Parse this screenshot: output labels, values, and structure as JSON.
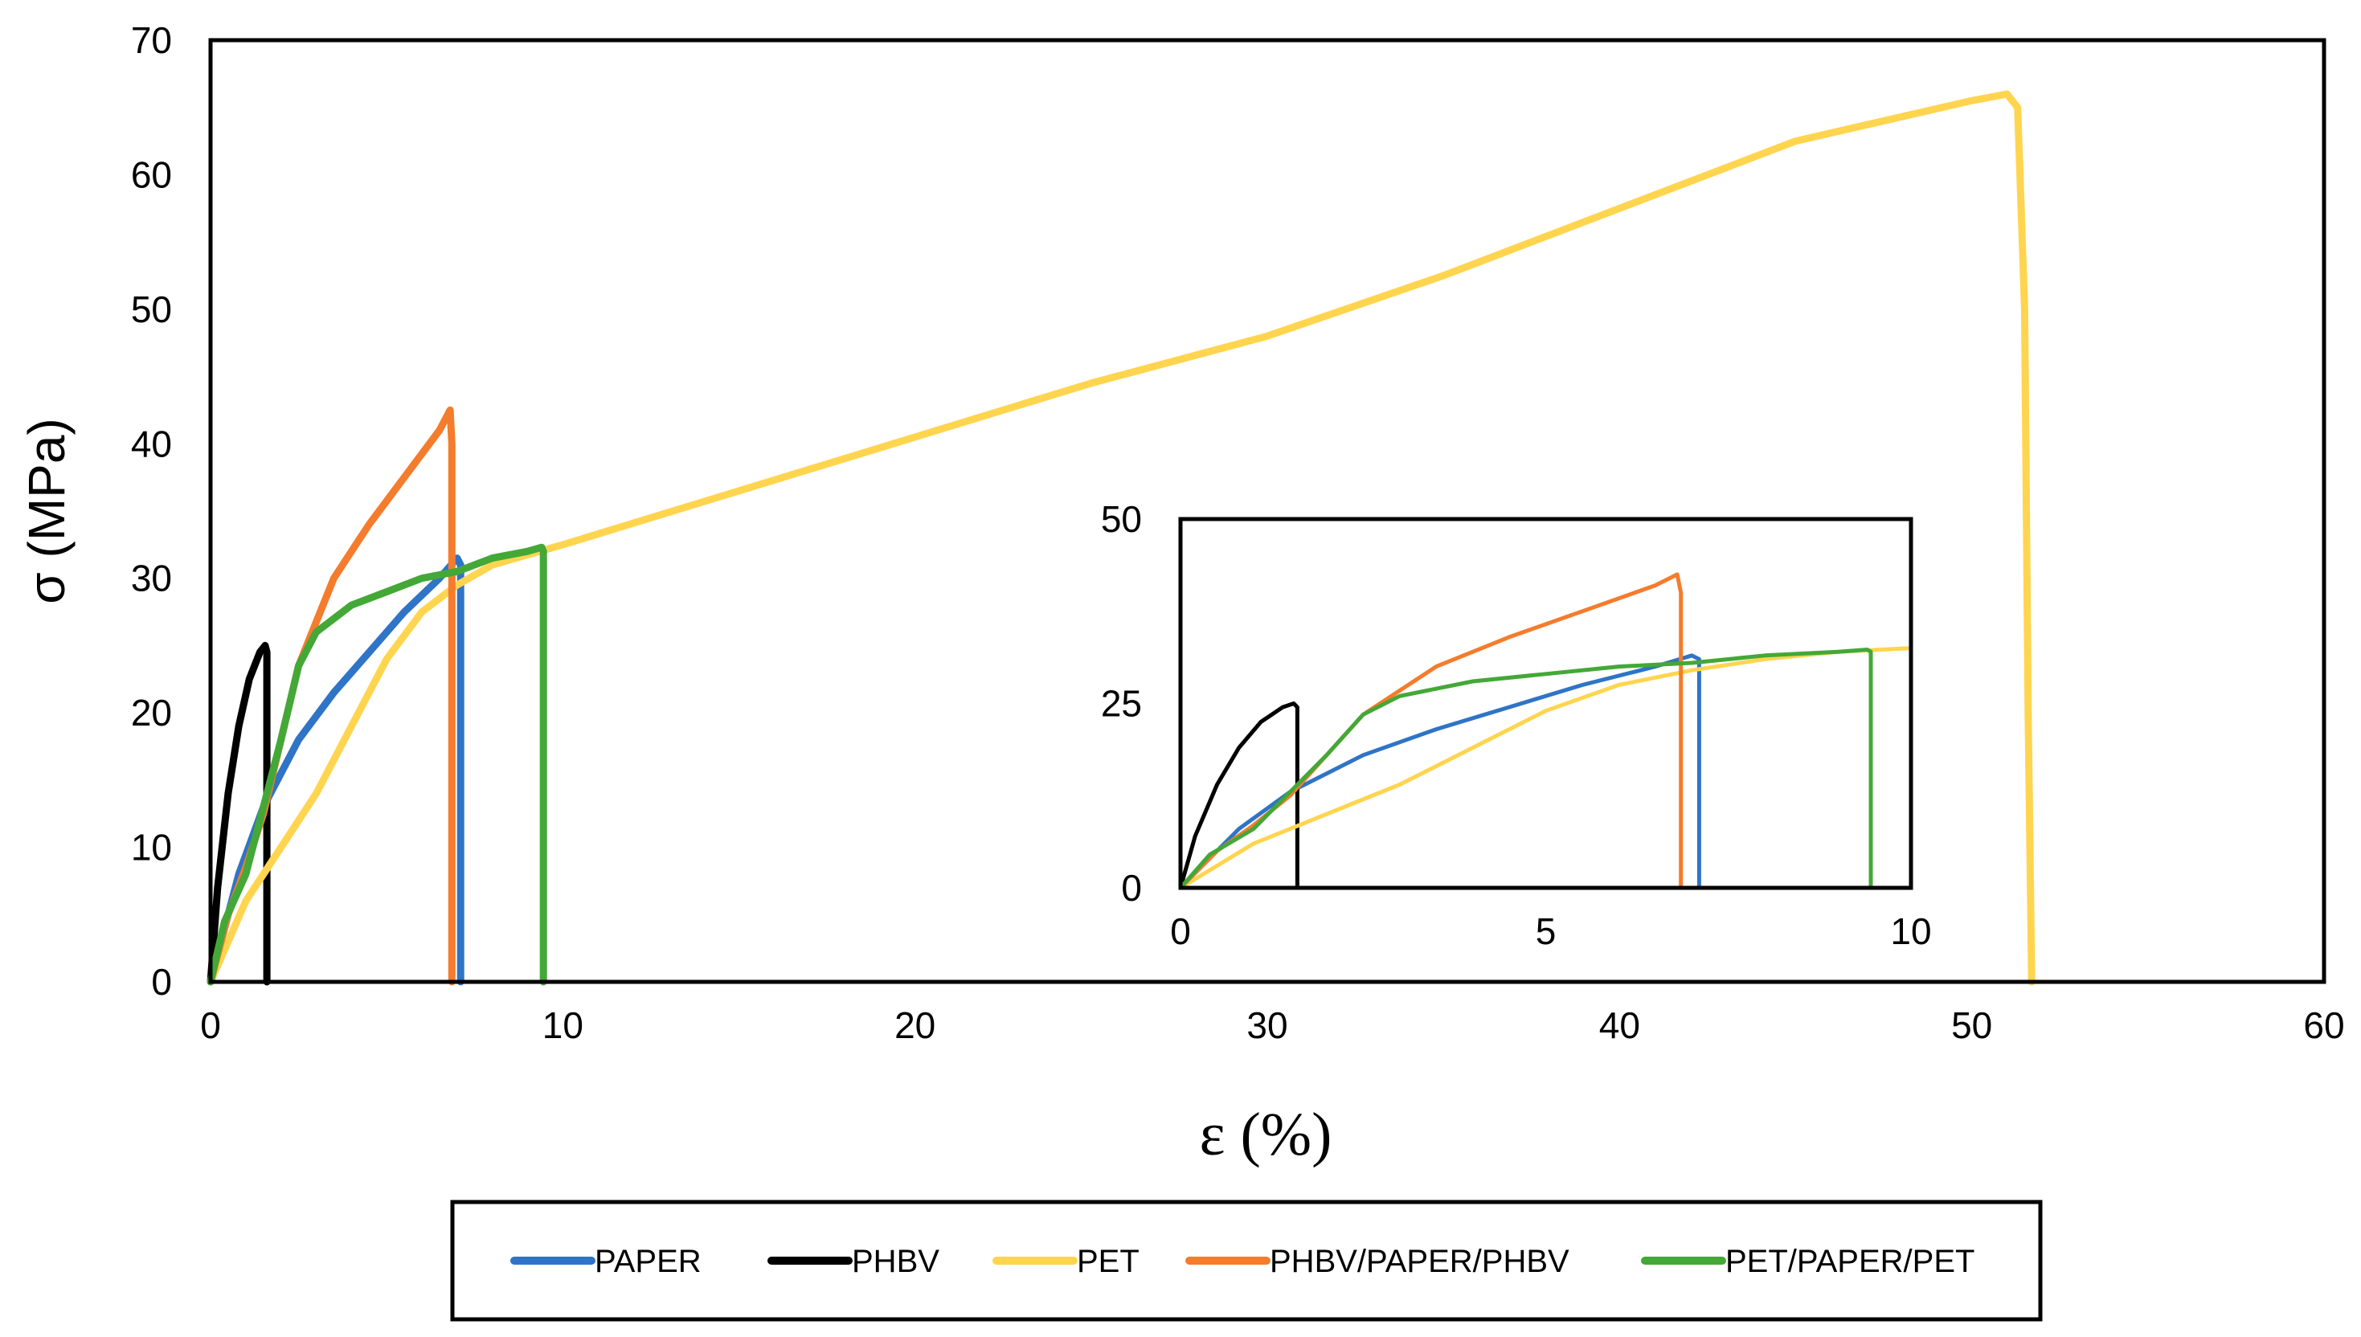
{
  "chart_data": [
    {
      "type": "line",
      "xlabel": "ε (%)",
      "ylabel": "σ (MPa)",
      "xlim": [
        0,
        60
      ],
      "ylim": [
        0,
        70
      ],
      "xticks": [
        "0",
        "10",
        "20",
        "30",
        "40",
        "50",
        "60"
      ],
      "yticks": [
        "0",
        "10",
        "20",
        "30",
        "40",
        "50",
        "60",
        "70"
      ],
      "grid": false,
      "legend_position": "bottom",
      "series": [
        {
          "name": "PAPER",
          "color": "#2F74C6",
          "x": [
            0,
            0.3,
            0.8,
            1.5,
            2.5,
            3.5,
            4.5,
            5.5,
            6.5,
            7.0,
            7.1,
            7.1,
            7.1
          ],
          "y": [
            0,
            3,
            8,
            13,
            18,
            21.5,
            24.5,
            27.5,
            30,
            31.5,
            31,
            10,
            0
          ]
        },
        {
          "name": "PHBV",
          "color": "#000000",
          "x": [
            0,
            0.2,
            0.5,
            0.8,
            1.1,
            1.4,
            1.55,
            1.6,
            1.6,
            1.6
          ],
          "y": [
            0,
            7,
            14,
            19,
            22.5,
            24.5,
            25,
            24.5,
            10,
            0
          ]
        },
        {
          "name": "PET",
          "color": "#FFD54F",
          "x": [
            0,
            0.5,
            1.0,
            2.0,
            3.0,
            4.0,
            5.0,
            6.0,
            7.0,
            8.0,
            10,
            15,
            20,
            25,
            30,
            35,
            40,
            45,
            50,
            51.0,
            51.3,
            51.5,
            51.6,
            51.7
          ],
          "y": [
            0,
            3,
            6,
            10,
            14,
            19,
            24,
            27.5,
            29.5,
            31,
            32.5,
            36.5,
            40.5,
            44.5,
            48,
            52.5,
            57.5,
            62.5,
            65.5,
            66,
            65,
            50,
            20,
            0
          ]
        },
        {
          "name": "PHBV/PAPER/PHBV",
          "color": "#F47C2C",
          "x": [
            0,
            0.5,
            1.0,
            1.5,
            2.5,
            3.5,
            4.5,
            5.5,
            6.5,
            6.8,
            6.85,
            6.85,
            6.85
          ],
          "y": [
            0,
            5,
            8.5,
            12.5,
            23.5,
            30,
            34,
            37.5,
            41,
            42.5,
            40,
            10,
            0
          ]
        },
        {
          "name": "PET/PAPER/PET",
          "color": "#43A837",
          "x": [
            0,
            0.4,
            1.0,
            1.5,
            2.0,
            2.5,
            3.0,
            4.0,
            5.0,
            6.0,
            7.0,
            8.0,
            9.0,
            9.4,
            9.45,
            9.45,
            9.45
          ],
          "y": [
            0,
            4.5,
            8,
            13,
            18,
            23.5,
            26,
            28,
            29,
            30,
            30.5,
            31.5,
            32,
            32.3,
            32,
            10,
            0
          ]
        }
      ]
    },
    {
      "type": "line",
      "xlim": [
        0,
        10
      ],
      "ylim": [
        0,
        50
      ],
      "xticks": [
        "0",
        "5",
        "10"
      ],
      "yticks": [
        "0",
        "25",
        "50"
      ],
      "grid": false,
      "series": [
        {
          "name": "PAPER",
          "color": "#2F74C6",
          "x": [
            0,
            0.3,
            0.8,
            1.5,
            2.5,
            3.5,
            4.5,
            5.5,
            6.5,
            7.0,
            7.1,
            7.1,
            7.1
          ],
          "y": [
            0,
            3,
            8,
            13,
            18,
            21.5,
            24.5,
            27.5,
            30,
            31.5,
            31,
            10,
            0
          ]
        },
        {
          "name": "PHBV",
          "color": "#000000",
          "x": [
            0,
            0.2,
            0.5,
            0.8,
            1.1,
            1.4,
            1.55,
            1.6,
            1.6,
            1.6
          ],
          "y": [
            0,
            7,
            14,
            19,
            22.5,
            24.5,
            25,
            24.5,
            10,
            0
          ]
        },
        {
          "name": "PET",
          "color": "#FFD54F",
          "x": [
            0,
            0.5,
            1.0,
            2.0,
            3.0,
            4.0,
            5.0,
            6.0,
            7.0,
            8.0,
            9.0,
            10.0
          ],
          "y": [
            0,
            3,
            6,
            10,
            14,
            19,
            24,
            27.5,
            29.5,
            31,
            32,
            32.5
          ]
        },
        {
          "name": "PHBV/PAPER/PHBV",
          "color": "#F47C2C",
          "x": [
            0,
            0.5,
            1.0,
            1.5,
            2.5,
            3.5,
            4.5,
            5.5,
            6.5,
            6.8,
            6.85,
            6.85,
            6.85
          ],
          "y": [
            0,
            5,
            8.5,
            12.5,
            23.5,
            30,
            34,
            37.5,
            41,
            42.5,
            40,
            10,
            0
          ]
        },
        {
          "name": "PET/PAPER/PET",
          "color": "#43A837",
          "x": [
            0,
            0.4,
            1.0,
            1.5,
            2.0,
            2.5,
            3.0,
            4.0,
            5.0,
            6.0,
            7.0,
            8.0,
            9.0,
            9.4,
            9.45,
            9.45,
            9.45
          ],
          "y": [
            0,
            4.5,
            8,
            13,
            18,
            23.5,
            26,
            28,
            29,
            30,
            30.5,
            31.5,
            32,
            32.3,
            32,
            10,
            0
          ]
        }
      ]
    }
  ]
}
